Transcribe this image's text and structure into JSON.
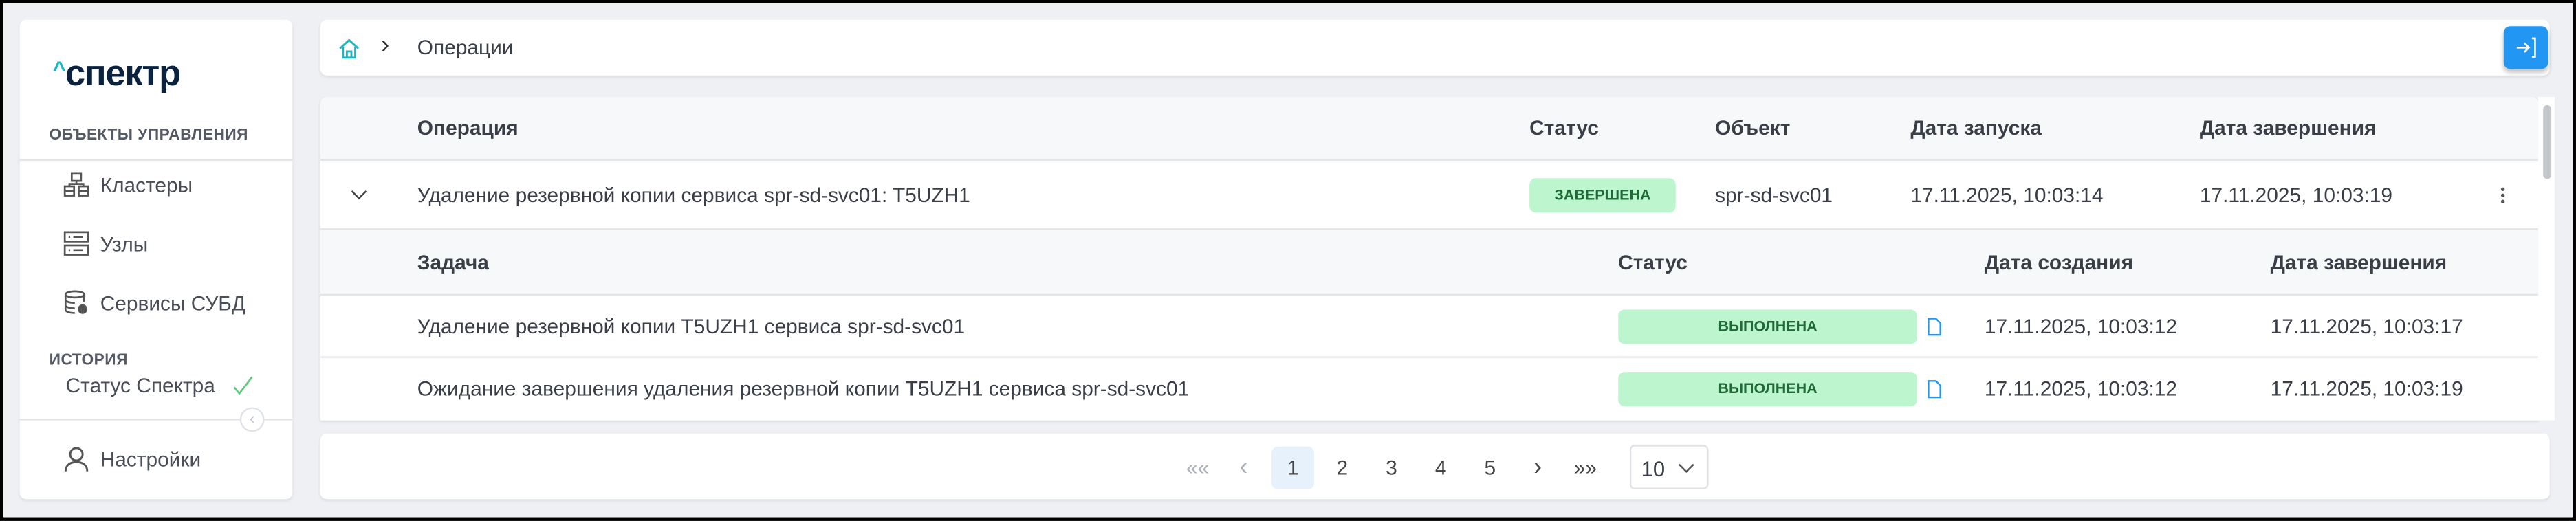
{
  "logo": {
    "text": "спектр",
    "caret": "^"
  },
  "sidebar": {
    "section_objects": "ОБЪЕКТЫ УПРАВЛЕНИЯ",
    "items": [
      {
        "label": "Кластеры",
        "icon": "cluster-icon"
      },
      {
        "label": "Узлы",
        "icon": "server-icon"
      },
      {
        "label": "Сервисы СУБД",
        "icon": "database-gear-icon"
      }
    ],
    "section_history": "ИСТОРИЯ",
    "history_status": "Статус Спектра",
    "settings": "Настройки"
  },
  "breadcrumb": {
    "current": "Операции"
  },
  "colors": {
    "accent": "#2196f3",
    "success_bg": "#bdf5cf",
    "success_text": "#1e6b36",
    "home_icon": "#1ab8c4"
  },
  "table": {
    "headers": [
      "Операция",
      "Статус",
      "Объект",
      "Дата запуска",
      "Дата завершения"
    ],
    "rows": [
      {
        "operation": "Удаление резервной копии сервиса spr-sd-svc01: T5UZH1",
        "status": "ЗАВЕРШЕНА",
        "object": "spr-sd-svc01",
        "started": "17.11.2025, 10:03:14",
        "finished": "17.11.2025, 10:03:19"
      }
    ],
    "subtable": {
      "headers": [
        "Задача",
        "Статус",
        "Дата создания",
        "Дата завершения"
      ],
      "rows": [
        {
          "task": "Удаление резервной копии T5UZH1 сервиса spr-sd-svc01",
          "status": "ВЫПОЛНЕНА",
          "created": "17.11.2025, 10:03:12",
          "finished": "17.11.2025, 10:03:17"
        },
        {
          "task": "Ожидание завершения удаления резервной копии T5UZH1 сервиса spr-sd-svc01",
          "status": "ВЫПОЛНЕНА",
          "created": "17.11.2025, 10:03:12",
          "finished": "17.11.2025, 10:03:19"
        }
      ]
    }
  },
  "pagination": {
    "first": "«",
    "prev": "‹",
    "pages": [
      "1",
      "2",
      "3",
      "4",
      "5"
    ],
    "current": "1",
    "next": "›",
    "last": "»",
    "page_size": "10"
  }
}
